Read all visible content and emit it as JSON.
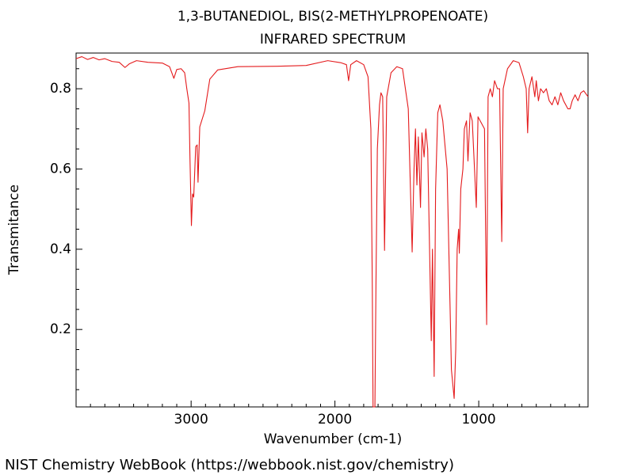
{
  "chart_data": {
    "type": "line",
    "title": "1,3-BUTANEDIOL, BIS(2-METHYLPROPENOATE)",
    "subtitle": "INFRARED SPECTRUM",
    "x_label": "Wavenumber (cm-1)",
    "y_label": "Transmitance",
    "footer": "NIST Chemistry WebBook (https://webbook.nist.gov/chemistry)",
    "xlim": [
      3800,
      240
    ],
    "ylim": [
      0.007,
      0.889
    ],
    "xticks": [
      3000,
      2000,
      1000
    ],
    "yticks": [
      0.2,
      0.4,
      0.6,
      0.8
    ],
    "xminorticks": [
      3700,
      3600,
      3500,
      3400,
      3300,
      3200,
      3100,
      2900,
      2800,
      2700,
      2600,
      2500,
      2400,
      2300,
      2200,
      2100,
      1900,
      1800,
      1700,
      1600,
      1500,
      1400,
      1300,
      1200,
      1100,
      900,
      800,
      700,
      600,
      500,
      400,
      300
    ],
    "yminorticks": [
      0.05,
      0.1,
      0.15,
      0.25,
      0.3,
      0.35,
      0.45,
      0.5,
      0.55,
      0.65,
      0.7,
      0.75,
      0.85
    ],
    "x": [
      3800,
      3760,
      3720,
      3680,
      3640,
      3600,
      3550,
      3500,
      3460,
      3430,
      3380,
      3300,
      3200,
      3150,
      3120,
      3100,
      3070,
      3045,
      3030,
      3015,
      3008,
      2998,
      2990,
      2982,
      2968,
      2958,
      2952,
      2940,
      2905,
      2870,
      2815,
      2675,
      2400,
      2200,
      2050,
      1960,
      1920,
      1905,
      1890,
      1850,
      1800,
      1770,
      1750,
      1740,
      1735,
      1722,
      1715,
      1705,
      1690,
      1680,
      1668,
      1655,
      1640,
      1610,
      1570,
      1530,
      1490,
      1463,
      1450,
      1440,
      1430,
      1420,
      1405,
      1395,
      1380,
      1368,
      1355,
      1330,
      1322,
      1310,
      1300,
      1285,
      1270,
      1250,
      1220,
      1190,
      1171,
      1160,
      1150,
      1140,
      1135,
      1125,
      1110,
      1100,
      1085,
      1075,
      1060,
      1045,
      1017,
      1005,
      990,
      960,
      945,
      935,
      920,
      905,
      890,
      870,
      855,
      840,
      830,
      800,
      760,
      720,
      690,
      670,
      660,
      650,
      630,
      610,
      600,
      585,
      570,
      550,
      530,
      510,
      490,
      470,
      450,
      430,
      410,
      380,
      365,
      350,
      330,
      310,
      290,
      270,
      250,
      240
    ],
    "series": [
      {
        "color": "#e41a1c",
        "values": [
          0.875,
          0.88,
          0.873,
          0.878,
          0.872,
          0.875,
          0.868,
          0.866,
          0.853,
          0.862,
          0.87,
          0.866,
          0.864,
          0.855,
          0.826,
          0.848,
          0.85,
          0.84,
          0.8,
          0.764,
          0.626,
          0.459,
          0.538,
          0.53,
          0.656,
          0.66,
          0.567,
          0.705,
          0.745,
          0.824,
          0.847,
          0.855,
          0.856,
          0.858,
          0.87,
          0.865,
          0.86,
          0.82,
          0.86,
          0.87,
          0.86,
          0.83,
          0.7,
          0.3,
          0.007,
          0.007,
          0.3,
          0.65,
          0.76,
          0.79,
          0.78,
          0.397,
          0.78,
          0.84,
          0.855,
          0.85,
          0.75,
          0.393,
          0.6,
          0.7,
          0.56,
          0.68,
          0.504,
          0.69,
          0.63,
          0.7,
          0.65,
          0.172,
          0.4,
          0.083,
          0.55,
          0.74,
          0.76,
          0.72,
          0.6,
          0.1,
          0.028,
          0.15,
          0.4,
          0.45,
          0.39,
          0.55,
          0.6,
          0.7,
          0.72,
          0.62,
          0.74,
          0.72,
          0.504,
          0.73,
          0.72,
          0.7,
          0.212,
          0.78,
          0.8,
          0.78,
          0.82,
          0.8,
          0.8,
          0.419,
          0.8,
          0.85,
          0.87,
          0.865,
          0.83,
          0.8,
          0.69,
          0.8,
          0.83,
          0.78,
          0.82,
          0.77,
          0.8,
          0.79,
          0.8,
          0.77,
          0.76,
          0.78,
          0.76,
          0.79,
          0.77,
          0.75,
          0.75,
          0.77,
          0.785,
          0.77,
          0.79,
          0.795,
          0.785,
          0.78
        ]
      }
    ]
  }
}
